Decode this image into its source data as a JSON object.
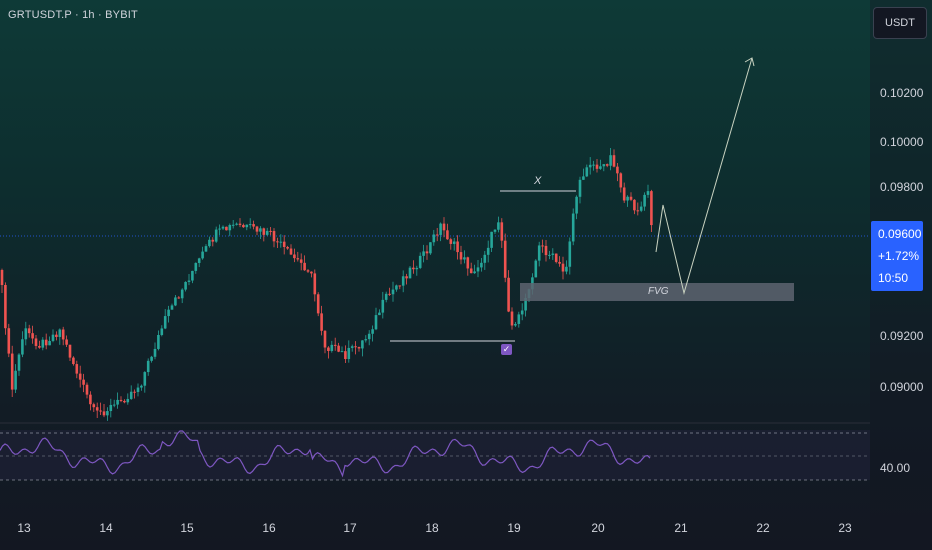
{
  "header": {
    "symbol_line": "GRTUSDT.P · 1h · BYBIT"
  },
  "currency_badge": "USDT",
  "price_axis": {
    "ticks": [
      "0.10200",
      "0.10000",
      "0.09800",
      "0.09200",
      "0.09000"
    ]
  },
  "current_price": {
    "price": "0.09600",
    "change": "+1.72%",
    "countdown": "10:50"
  },
  "rsi": {
    "level_label": "40.00"
  },
  "time_axis": {
    "labels": [
      "13",
      "14",
      "15",
      "16",
      "17",
      "18",
      "19",
      "20",
      "21",
      "22",
      "23"
    ]
  },
  "annotations": {
    "range_label": "X",
    "zone_label": "FVG",
    "check_mark": "✓"
  },
  "colors": {
    "up": "#26a69a",
    "down": "#ef5350",
    "accent": "#2962ff",
    "rsi_line": "#7e57c2",
    "zone": "#5d6470",
    "drawing": "#d1d4dc",
    "projection": "#c8d2c0"
  }
}
